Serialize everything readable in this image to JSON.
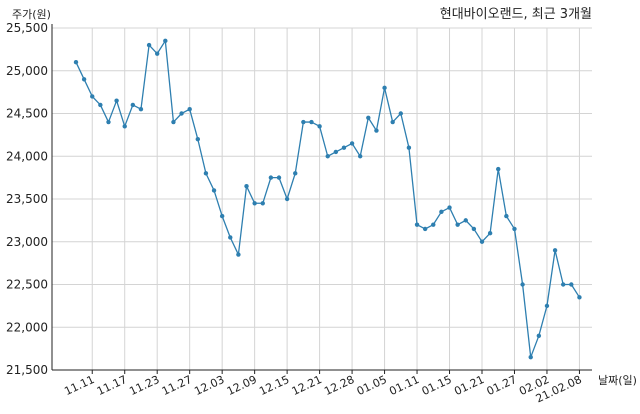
{
  "chart_data": {
    "type": "line",
    "title": "현대바이오랜드, 최근 3개월",
    "ylabel": "주가(원)",
    "xlabel": "날짜(일)",
    "ylim": [
      21500,
      25500
    ],
    "yticks": [
      21500,
      22000,
      22500,
      23000,
      23500,
      24000,
      24500,
      25000,
      25500
    ],
    "ytick_labels": [
      "21,500",
      "22,000",
      "22,500",
      "23,000",
      "23,500",
      "24,000",
      "24,500",
      "25,000",
      "25,500"
    ],
    "xtick_labels": [
      "11.11",
      "11.17",
      "11.23",
      "11.27",
      "12.03",
      "12.09",
      "12.15",
      "12.21",
      "12.28",
      "01.05",
      "01.11",
      "01.15",
      "01.21",
      "01.27",
      "02.02",
      "21.02.08"
    ],
    "xtick_index": [
      2,
      6,
      10,
      14,
      18,
      22,
      26,
      30,
      34,
      38,
      42,
      46,
      50,
      54,
      58,
      62
    ],
    "grid": true,
    "color": "#2e7fb0",
    "series": [
      {
        "values": [
          25100,
          24900,
          24700,
          24600,
          24400,
          24650,
          24350,
          24600,
          24550,
          25300,
          25200,
          25350,
          24400,
          24500,
          24550,
          24200,
          23800,
          23600,
          23300,
          23050,
          22850,
          23650,
          23450,
          23450,
          23750,
          23750,
          23500,
          23800,
          24400,
          24400,
          24350,
          24000,
          24050,
          24100,
          24150,
          24000,
          24450,
          24300,
          24800,
          24400,
          24500,
          24100,
          23200,
          23150,
          23200,
          23350,
          23400,
          23200,
          23250,
          23150,
          23000,
          23100,
          23850,
          23300,
          23150,
          22500,
          21650,
          21900,
          22250,
          22900,
          22500,
          22500,
          22350
        ]
      }
    ]
  }
}
